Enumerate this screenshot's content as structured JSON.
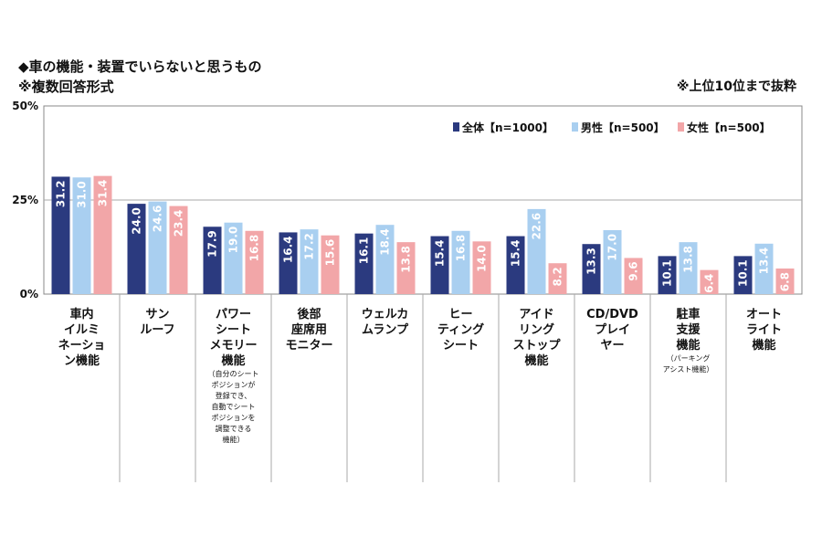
{
  "title": "◆車の機能・装置でいらないと思うもの",
  "subtitle": "※複数回答形式",
  "note": "※上位10位まで抜粋",
  "colors": {
    "all": "#2b3a7f",
    "male": "#a9cff0",
    "female": "#f2a6a8"
  },
  "chart_data": {
    "type": "bar",
    "ylim": [
      0,
      50
    ],
    "yticks": [
      "0%",
      "25%",
      "50%"
    ],
    "legend_position": "top-right",
    "categories": [
      {
        "lines": [
          "車内",
          "イルミ",
          "ネーショ",
          "ン機能"
        ],
        "sub": []
      },
      {
        "lines": [
          "サン",
          "ルーフ"
        ],
        "sub": []
      },
      {
        "lines": [
          "パワー",
          "シート",
          "メモリー",
          "機能"
        ],
        "sub": [
          "（自分のシート",
          "ポジションが",
          "登録でき、",
          "自動でシート",
          "ポジションを",
          "調整できる",
          "機能）"
        ]
      },
      {
        "lines": [
          "後部",
          "座席用",
          "モニター"
        ],
        "sub": []
      },
      {
        "lines": [
          "ウェルカ",
          "ムランプ"
        ],
        "sub": []
      },
      {
        "lines": [
          "ヒー",
          "ティング",
          "シート"
        ],
        "sub": []
      },
      {
        "lines": [
          "アイド",
          "リング",
          "ストップ",
          "機能"
        ],
        "sub": []
      },
      {
        "lines": [
          "CD/DVD",
          "プレイ",
          "ヤー"
        ],
        "sub": []
      },
      {
        "lines": [
          "駐車",
          "支援",
          "機能"
        ],
        "sub": [
          "（パーキング",
          "アシスト機能）"
        ]
      },
      {
        "lines": [
          "オート",
          "ライト",
          "機能"
        ],
        "sub": []
      }
    ],
    "series": [
      {
        "name": "全体【n=1000】",
        "values": [
          31.2,
          24.0,
          17.9,
          16.4,
          16.1,
          15.4,
          15.4,
          13.3,
          10.1,
          10.1
        ]
      },
      {
        "name": "男性【n=500】",
        "values": [
          31.0,
          24.6,
          19.0,
          17.2,
          18.4,
          16.8,
          22.6,
          17.0,
          13.8,
          13.4
        ]
      },
      {
        "name": "女性【n=500】",
        "values": [
          31.4,
          23.4,
          16.8,
          15.6,
          13.8,
          14.0,
          8.2,
          9.6,
          6.4,
          6.8
        ]
      }
    ]
  }
}
